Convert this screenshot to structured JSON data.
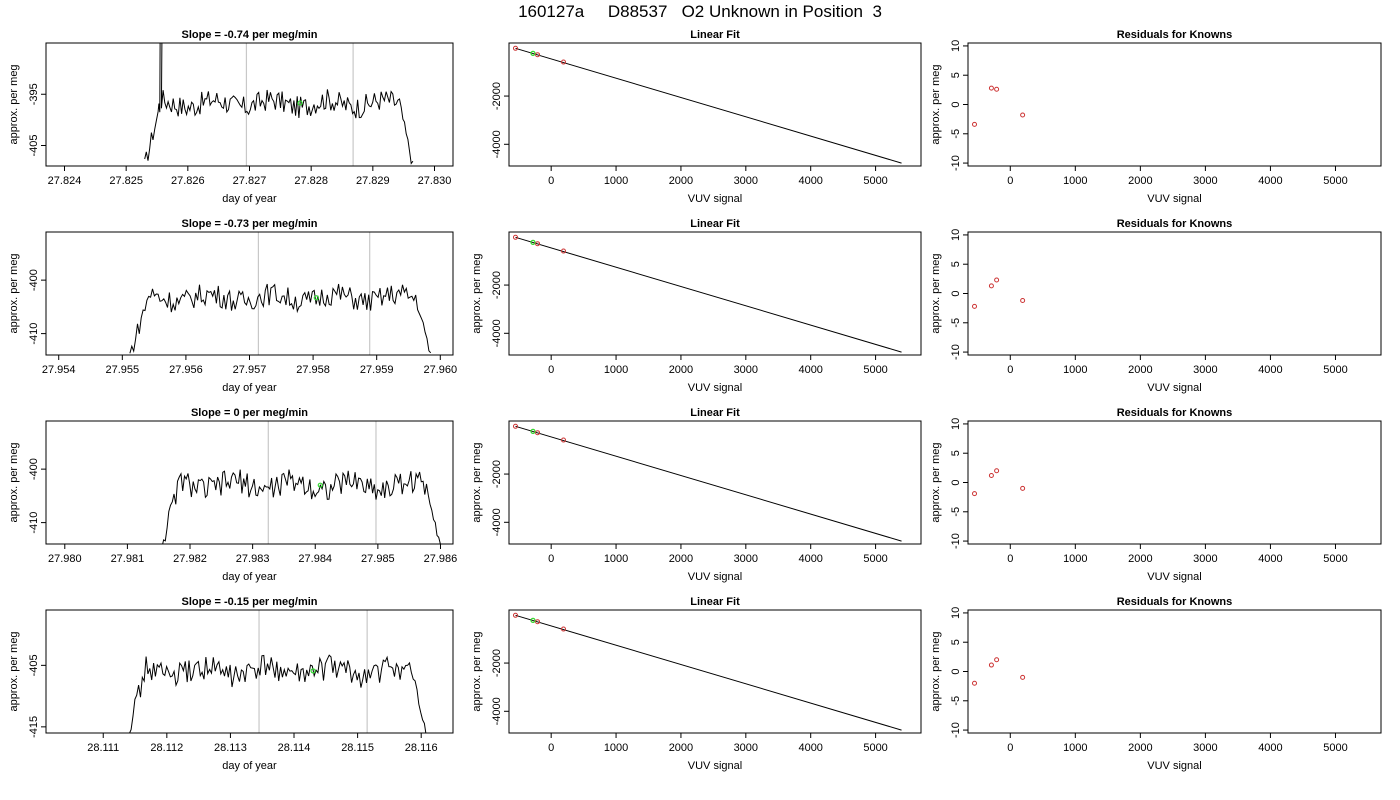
{
  "main_title": "160127a     D88537   O2 Unknown in Position  3",
  "chart_data": [
    {
      "type": "line",
      "title": "Slope =  -0.74  per meg/min",
      "xlabel": "day of year",
      "ylabel": "approx. per meg",
      "xlim": [
        27.8237,
        27.8303
      ],
      "ylim": [
        -409,
        -385
      ],
      "xticks": [
        "27.824",
        "27.825",
        "27.826",
        "27.827",
        "27.828",
        "27.829",
        "27.830"
      ],
      "xtick_values": [
        27.824,
        27.825,
        27.826,
        27.827,
        27.828,
        27.829,
        27.83
      ],
      "yticks": [
        "-395",
        "-405"
      ],
      "ytick_values": [
        -395,
        -405
      ],
      "vlines": [
        27.82695,
        27.82868
      ],
      "series": [
        {
          "x_start": 27.8253,
          "x_end": 27.82965,
          "base": -396.8,
          "amp": 2.2,
          "start_level": -409,
          "spike_at": 27.82555,
          "spike_to": -385
        }
      ],
      "highlight": {
        "x": 27.82782,
        "y": -396.7
      }
    },
    {
      "type": "scatter",
      "title": "Linear Fit",
      "xlabel": "VUV signal",
      "ylabel": "",
      "xlim": [
        -650,
        5700
      ],
      "ylim": [
        -4900,
        200
      ],
      "xticks": [
        "0",
        "1000",
        "2000",
        "3000",
        "4000",
        "5000"
      ],
      "xtick_values": [
        0,
        1000,
        2000,
        3000,
        4000,
        5000
      ],
      "yticks": [
        "-2000",
        "-4000"
      ],
      "ytick_values": [
        -2000,
        -4000
      ],
      "fit_line": {
        "x0": -550,
        "y0": -20,
        "x1": 5400,
        "y1": -4780
      },
      "points": [
        {
          "x": -550,
          "y": -20
        },
        {
          "x": -280,
          "y": -230
        },
        {
          "x": -210,
          "y": -285
        },
        {
          "x": 190,
          "y": -590
        }
      ],
      "highlight": {
        "x": -280,
        "y": -230
      }
    },
    {
      "type": "scatter",
      "title": "Residuals for Knowns",
      "xlabel": "VUV signal",
      "ylabel": "approx. per meg",
      "xlim": [
        -650,
        5700
      ],
      "ylim": [
        -10.5,
        10.5
      ],
      "xticks": [
        "0",
        "1000",
        "2000",
        "3000",
        "4000",
        "5000"
      ],
      "xtick_values": [
        0,
        1000,
        2000,
        3000,
        4000,
        5000
      ],
      "yticks": [
        "-10",
        "-5",
        "0",
        "5",
        "10"
      ],
      "ytick_values": [
        -10,
        -5,
        0,
        5,
        10
      ],
      "points": [
        {
          "x": -550,
          "y": -3.4
        },
        {
          "x": -290,
          "y": 2.8
        },
        {
          "x": -210,
          "y": 2.6
        },
        {
          "x": 190,
          "y": -1.8
        }
      ]
    },
    {
      "type": "line",
      "title": "Slope =  -0.73  per meg/min",
      "xlabel": "day of year",
      "ylabel": "approx. per meg",
      "xlim": [
        27.9538,
        27.9602
      ],
      "ylim": [
        -414,
        -391
      ],
      "xticks": [
        "27.954",
        "27.955",
        "27.956",
        "27.957",
        "27.958",
        "27.959",
        "27.960"
      ],
      "xtick_values": [
        27.954,
        27.955,
        27.956,
        27.957,
        27.958,
        27.959,
        27.96
      ],
      "yticks": [
        "-400",
        "-410"
      ],
      "ytick_values": [
        -400,
        -410
      ],
      "vlines": [
        27.95714,
        27.95889
      ],
      "series": [
        {
          "x_start": 27.95512,
          "x_end": 27.95985,
          "base": -403.3,
          "amp": 2.1,
          "start_level": -414
        }
      ],
      "highlight": {
        "x": 27.95805,
        "y": -403.3
      }
    },
    {
      "type": "scatter",
      "title": "Linear Fit",
      "xlabel": "VUV signal",
      "ylabel": "approx. per meg",
      "xlim": [
        -650,
        5700
      ],
      "ylim": [
        -4900,
        200
      ],
      "xticks": [
        "0",
        "1000",
        "2000",
        "3000",
        "4000",
        "5000"
      ],
      "xtick_values": [
        0,
        1000,
        2000,
        3000,
        4000,
        5000
      ],
      "yticks": [
        "-2000",
        "-4000"
      ],
      "ytick_values": [
        -2000,
        -4000
      ],
      "fit_line": {
        "x0": -550,
        "y0": -20,
        "x1": 5400,
        "y1": -4780
      },
      "points": [
        {
          "x": -550,
          "y": -20
        },
        {
          "x": -280,
          "y": -230
        },
        {
          "x": -210,
          "y": -285
        },
        {
          "x": 190,
          "y": -590
        }
      ],
      "highlight": {
        "x": -280,
        "y": -230
      }
    },
    {
      "type": "scatter",
      "title": "Residuals for Knowns",
      "xlabel": "VUV signal",
      "ylabel": "approx. per meg",
      "xlim": [
        -650,
        5700
      ],
      "ylim": [
        -10.5,
        10.5
      ],
      "xticks": [
        "0",
        "1000",
        "2000",
        "3000",
        "4000",
        "5000"
      ],
      "xtick_values": [
        0,
        1000,
        2000,
        3000,
        4000,
        5000
      ],
      "yticks": [
        "-10",
        "-5",
        "0",
        "5",
        "10"
      ],
      "ytick_values": [
        -10,
        -5,
        0,
        5,
        10
      ],
      "points": [
        {
          "x": -550,
          "y": -2.2
        },
        {
          "x": -290,
          "y": 1.3
        },
        {
          "x": -210,
          "y": 2.3
        },
        {
          "x": 190,
          "y": -1.2
        }
      ]
    },
    {
      "type": "line",
      "title": "Slope =  0  per meg/min",
      "xlabel": "day of year",
      "ylabel": "approx. per meg",
      "xlim": [
        27.9797,
        27.9862
      ],
      "ylim": [
        -414,
        -391
      ],
      "xticks": [
        "27.980",
        "27.981",
        "27.982",
        "27.983",
        "27.984",
        "27.985",
        "27.986"
      ],
      "xtick_values": [
        27.98,
        27.981,
        27.982,
        27.983,
        27.984,
        27.985,
        27.986
      ],
      "yticks": [
        "-400",
        "-410"
      ],
      "ytick_values": [
        -400,
        -410
      ],
      "vlines": [
        27.98325,
        27.98497
      ],
      "series": [
        {
          "x_start": 27.98155,
          "x_end": 27.986,
          "base": -403.0,
          "amp": 2.3,
          "start_level": -414
        }
      ],
      "highlight": {
        "x": 27.98408,
        "y": -403.0
      }
    },
    {
      "type": "scatter",
      "title": "Linear Fit",
      "xlabel": "VUV signal",
      "ylabel": "approx. per meg",
      "xlim": [
        -650,
        5700
      ],
      "ylim": [
        -4900,
        200
      ],
      "xticks": [
        "0",
        "1000",
        "2000",
        "3000",
        "4000",
        "5000"
      ],
      "xtick_values": [
        0,
        1000,
        2000,
        3000,
        4000,
        5000
      ],
      "yticks": [
        "-2000",
        "-4000"
      ],
      "ytick_values": [
        -2000,
        -4000
      ],
      "fit_line": {
        "x0": -550,
        "y0": -20,
        "x1": 5400,
        "y1": -4780
      },
      "points": [
        {
          "x": -550,
          "y": -20
        },
        {
          "x": -280,
          "y": -230
        },
        {
          "x": -210,
          "y": -285
        },
        {
          "x": 190,
          "y": -590
        }
      ],
      "highlight": {
        "x": -280,
        "y": -230
      }
    },
    {
      "type": "scatter",
      "title": "Residuals for Knowns",
      "xlabel": "VUV signal",
      "ylabel": "approx. per meg",
      "xlim": [
        -650,
        5700
      ],
      "ylim": [
        -10.5,
        10.5
      ],
      "xticks": [
        "0",
        "1000",
        "2000",
        "3000",
        "4000",
        "5000"
      ],
      "xtick_values": [
        0,
        1000,
        2000,
        3000,
        4000,
        5000
      ],
      "yticks": [
        "-10",
        "-5",
        "0",
        "5",
        "10"
      ],
      "ytick_values": [
        -10,
        -5,
        0,
        5,
        10
      ],
      "points": [
        {
          "x": -550,
          "y": -1.9
        },
        {
          "x": -290,
          "y": 1.2
        },
        {
          "x": -210,
          "y": 2.0
        },
        {
          "x": 190,
          "y": -1.0
        }
      ]
    },
    {
      "type": "line",
      "title": "Slope =  -0.15  per meg/min",
      "xlabel": "day of year",
      "ylabel": "approx. per meg",
      "xlim": [
        28.1101,
        28.1165
      ],
      "ylim": [
        -416,
        -396
      ],
      "xticks": [
        "28.111",
        "28.112",
        "28.113",
        "28.114",
        "28.115",
        "28.116"
      ],
      "xtick_values": [
        28.111,
        28.112,
        28.113,
        28.114,
        28.115,
        28.116
      ],
      "yticks": [
        "-405",
        "-415"
      ],
      "ytick_values": [
        -405,
        -415
      ],
      "vlines": [
        28.11345,
        28.11515
      ],
      "series": [
        {
          "x_start": 28.11138,
          "x_end": 28.11608,
          "base": -406.0,
          "amp": 2.0,
          "start_level": -416
        }
      ],
      "highlight": {
        "x": 28.1143,
        "y": -405.9
      }
    },
    {
      "type": "scatter",
      "title": "Linear Fit",
      "xlabel": "VUV signal",
      "ylabel": "approx. per meg",
      "xlim": [
        -650,
        5700
      ],
      "ylim": [
        -4900,
        200
      ],
      "xticks": [
        "0",
        "1000",
        "2000",
        "3000",
        "4000",
        "5000"
      ],
      "xtick_values": [
        0,
        1000,
        2000,
        3000,
        4000,
        5000
      ],
      "yticks": [
        "-2000",
        "-4000"
      ],
      "ytick_values": [
        -2000,
        -4000
      ],
      "fit_line": {
        "x0": -550,
        "y0": -20,
        "x1": 5400,
        "y1": -4780
      },
      "points": [
        {
          "x": -550,
          "y": -20
        },
        {
          "x": -280,
          "y": -230
        },
        {
          "x": -210,
          "y": -285
        },
        {
          "x": 190,
          "y": -590
        }
      ],
      "highlight": {
        "x": -280,
        "y": -230
      }
    },
    {
      "type": "scatter",
      "title": "Residuals for Knowns",
      "xlabel": "VUV signal",
      "ylabel": "approx. per meg",
      "xlim": [
        -650,
        5700
      ],
      "ylim": [
        -10.5,
        10.5
      ],
      "xticks": [
        "0",
        "1000",
        "2000",
        "3000",
        "4000",
        "5000"
      ],
      "xtick_values": [
        0,
        1000,
        2000,
        3000,
        4000,
        5000
      ],
      "yticks": [
        "-10",
        "-5",
        "0",
        "5",
        "10"
      ],
      "ytick_values": [
        -10,
        -5,
        0,
        5,
        10
      ],
      "points": [
        {
          "x": -550,
          "y": -2.0
        },
        {
          "x": -290,
          "y": 1.1
        },
        {
          "x": -210,
          "y": 2.0
        },
        {
          "x": 190,
          "y": -1.0
        }
      ]
    }
  ],
  "colors": {
    "line": "#000000",
    "point": "#cc3333",
    "highlight": "#33dd33",
    "vline": "#c8c8c8",
    "axis": "#000000"
  }
}
